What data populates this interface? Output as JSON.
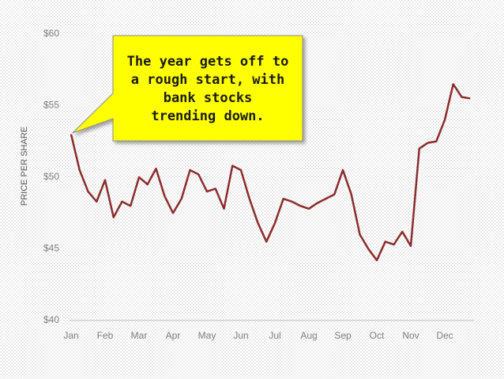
{
  "chart_data": {
    "type": "line",
    "ylabel": "PRICE PER SHARE",
    "annotation": [
      "The year gets off to",
      "a rough start, with",
      "bank stocks",
      "trending down."
    ],
    "categories": [
      "Jan",
      null,
      null,
      null,
      "Feb",
      null,
      null,
      null,
      "Mar",
      null,
      null,
      null,
      "Apr",
      null,
      null,
      null,
      "May",
      null,
      null,
      null,
      "Jun",
      null,
      null,
      null,
      "Jul",
      null,
      null,
      null,
      "Aug",
      null,
      null,
      null,
      "Sep",
      null,
      null,
      null,
      "Oct",
      null,
      null,
      null,
      "Nov",
      null,
      null,
      null,
      "Dec",
      null,
      null,
      null
    ],
    "series": [
      {
        "color": "#8b2c2c",
        "values": [
          53.0,
          50.5,
          49.0,
          48.3,
          49.8,
          47.2,
          48.3,
          48.0,
          50.0,
          49.5,
          50.6,
          48.7,
          47.5,
          48.5,
          50.5,
          50.2,
          49.0,
          49.2,
          47.8,
          50.8,
          50.5,
          48.5,
          46.8,
          45.5,
          46.8,
          48.5,
          48.3,
          48.0,
          47.8,
          48.2,
          48.5,
          48.8,
          50.5,
          48.8,
          46.0,
          45.0,
          44.2,
          45.5,
          45.3,
          46.2,
          45.2,
          52.0,
          52.4,
          52.5,
          54.0,
          56.5,
          55.6,
          55.5
        ]
      }
    ],
    "ylim": [
      40,
      60
    ],
    "yticks": [
      {
        "value": 40,
        "label": "$40"
      },
      {
        "value": 45,
        "label": "$45"
      },
      {
        "value": 50,
        "label": "$50"
      },
      {
        "value": 55,
        "label": "$55"
      },
      {
        "value": 60,
        "label": "$60"
      }
    ],
    "grid": false
  }
}
